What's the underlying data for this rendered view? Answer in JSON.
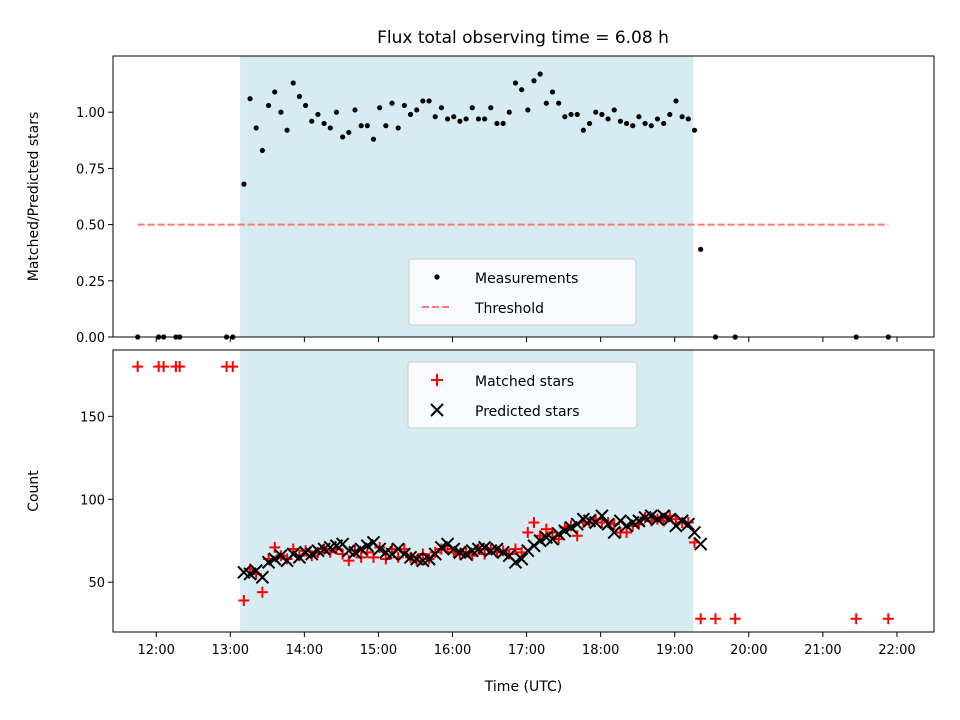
{
  "title": "Flux total observing time = 6.08 h",
  "chart_data": [
    {
      "type": "scatter",
      "ylabel": "Matched/Predicted stars",
      "xlabel": "",
      "xlim": [
        "11:25",
        "22:30"
      ],
      "ylim": [
        0.0,
        1.25
      ],
      "y_ticks": [
        "0.00",
        "0.25",
        "0.50",
        "0.75",
        "1.00"
      ],
      "shaded_span": {
        "from": "13:08",
        "to": "19:15",
        "color": "#add8e6"
      },
      "legend_placement": "lower center",
      "series": [
        {
          "name": "Measurements",
          "marker": "dot",
          "color": "#000000",
          "points": [
            [
              "11:45",
              0.0
            ],
            [
              "12:02",
              0.0
            ],
            [
              "12:06",
              0.0
            ],
            [
              "12:16",
              0.0
            ],
            [
              "12:19",
              0.0
            ],
            [
              "12:57",
              0.0
            ],
            [
              "13:02",
              0.0
            ],
            [
              "13:11",
              0.68
            ],
            [
              "13:16",
              1.06
            ],
            [
              "13:21",
              0.93
            ],
            [
              "13:26",
              0.83
            ],
            [
              "13:31",
              1.03
            ],
            [
              "13:36",
              1.09
            ],
            [
              "13:41",
              1.0
            ],
            [
              "13:46",
              0.92
            ],
            [
              "13:51",
              1.13
            ],
            [
              "13:56",
              1.07
            ],
            [
              "14:01",
              1.03
            ],
            [
              "14:06",
              0.96
            ],
            [
              "14:11",
              0.99
            ],
            [
              "14:16",
              0.95
            ],
            [
              "14:21",
              0.93
            ],
            [
              "14:26",
              1.0
            ],
            [
              "14:31",
              0.89
            ],
            [
              "14:36",
              0.91
            ],
            [
              "14:41",
              1.01
            ],
            [
              "14:46",
              0.94
            ],
            [
              "14:51",
              0.94
            ],
            [
              "14:56",
              0.88
            ],
            [
              "15:01",
              1.02
            ],
            [
              "15:06",
              0.94
            ],
            [
              "15:11",
              1.04
            ],
            [
              "15:16",
              0.93
            ],
            [
              "15:21",
              1.03
            ],
            [
              "15:26",
              0.99
            ],
            [
              "15:31",
              1.01
            ],
            [
              "15:36",
              1.05
            ],
            [
              "15:41",
              1.05
            ],
            [
              "15:46",
              0.98
            ],
            [
              "15:51",
              1.02
            ],
            [
              "15:56",
              0.97
            ],
            [
              "16:01",
              0.98
            ],
            [
              "16:06",
              0.96
            ],
            [
              "16:11",
              0.97
            ],
            [
              "16:16",
              1.02
            ],
            [
              "16:21",
              0.97
            ],
            [
              "16:26",
              0.97
            ],
            [
              "16:31",
              1.02
            ],
            [
              "16:36",
              0.95
            ],
            [
              "16:41",
              0.95
            ],
            [
              "16:46",
              1.0
            ],
            [
              "16:51",
              1.13
            ],
            [
              "16:56",
              1.1
            ],
            [
              "17:01",
              1.01
            ],
            [
              "17:06",
              1.14
            ],
            [
              "17:11",
              1.17
            ],
            [
              "17:16",
              1.04
            ],
            [
              "17:21",
              1.09
            ],
            [
              "17:26",
              1.04
            ],
            [
              "17:31",
              0.98
            ],
            [
              "17:36",
              0.99
            ],
            [
              "17:41",
              0.99
            ],
            [
              "17:46",
              0.92
            ],
            [
              "17:51",
              0.95
            ],
            [
              "17:56",
              1.0
            ],
            [
              "18:01",
              0.99
            ],
            [
              "18:06",
              0.97
            ],
            [
              "18:11",
              1.01
            ],
            [
              "18:16",
              0.96
            ],
            [
              "18:21",
              0.95
            ],
            [
              "18:26",
              0.94
            ],
            [
              "18:31",
              0.98
            ],
            [
              "18:36",
              0.95
            ],
            [
              "18:41",
              0.94
            ],
            [
              "18:46",
              0.97
            ],
            [
              "18:51",
              0.95
            ],
            [
              "18:56",
              0.99
            ],
            [
              "19:01",
              1.05
            ],
            [
              "19:06",
              0.98
            ],
            [
              "19:11",
              0.97
            ],
            [
              "19:16",
              0.92
            ],
            [
              "19:21",
              0.39
            ],
            [
              "19:33",
              0.0
            ],
            [
              "19:49",
              0.0
            ],
            [
              "21:27",
              0.0
            ],
            [
              "21:53",
              0.0
            ]
          ]
        },
        {
          "name": "Threshold",
          "marker": "dashed-line",
          "color": "#ff7777",
          "points": [
            [
              "11:45",
              0.5
            ],
            [
              "21:53",
              0.5
            ]
          ]
        }
      ]
    },
    {
      "type": "scatter",
      "ylabel": "Count",
      "xlabel": "Time (UTC)",
      "xlim": [
        "11:25",
        "22:30"
      ],
      "ylim": [
        20,
        190
      ],
      "y_ticks": [
        "50",
        "100",
        "150"
      ],
      "x_ticks": [
        "12:00",
        "13:00",
        "14:00",
        "15:00",
        "16:00",
        "17:00",
        "18:00",
        "19:00",
        "20:00",
        "21:00",
        "22:00"
      ],
      "shaded_span": {
        "from": "13:08",
        "to": "19:15",
        "color": "#add8e6"
      },
      "legend_placement": "upper center",
      "series": [
        {
          "name": "Matched stars",
          "marker": "plus",
          "color": "#ff0000",
          "points": [
            [
              "11:45",
              180
            ],
            [
              "12:02",
              180
            ],
            [
              "12:06",
              180
            ],
            [
              "12:16",
              180
            ],
            [
              "12:19",
              180
            ],
            [
              "12:57",
              180
            ],
            [
              "13:02",
              180
            ],
            [
              "13:11",
              39
            ],
            [
              "13:16",
              58
            ],
            [
              "13:21",
              55
            ],
            [
              "13:26",
              44
            ],
            [
              "13:31",
              64
            ],
            [
              "13:36",
              71
            ],
            [
              "13:41",
              66
            ],
            [
              "13:46",
              64
            ],
            [
              "13:51",
              70
            ],
            [
              "13:56",
              66
            ],
            [
              "14:01",
              69
            ],
            [
              "14:06",
              66
            ],
            [
              "14:11",
              68
            ],
            [
              "14:16",
              70
            ],
            [
              "14:21",
              68
            ],
            [
              "14:26",
              70
            ],
            [
              "14:31",
              67
            ],
            [
              "14:36",
              63
            ],
            [
              "14:41",
              69
            ],
            [
              "14:46",
              65
            ],
            [
              "14:51",
              68
            ],
            [
              "14:56",
              65
            ],
            [
              "15:01",
              71
            ],
            [
              "15:06",
              64
            ],
            [
              "15:11",
              70
            ],
            [
              "15:16",
              65
            ],
            [
              "15:21",
              70
            ],
            [
              "15:26",
              65
            ],
            [
              "15:31",
              63
            ],
            [
              "15:36",
              67
            ],
            [
              "15:41",
              64
            ],
            [
              "15:46",
              68
            ],
            [
              "15:51",
              70
            ],
            [
              "15:56",
              70
            ],
            [
              "16:01",
              68
            ],
            [
              "16:06",
              67
            ],
            [
              "16:11",
              68
            ],
            [
              "16:16",
              66
            ],
            [
              "16:21",
              70
            ],
            [
              "16:26",
              67
            ],
            [
              "16:31",
              70
            ],
            [
              "16:36",
              68
            ],
            [
              "16:41",
              69
            ],
            [
              "16:46",
              67
            ],
            [
              "16:51",
              70
            ],
            [
              "16:56",
              68
            ],
            [
              "17:01",
              80
            ],
            [
              "17:06",
              86
            ],
            [
              "17:11",
              78
            ],
            [
              "17:16",
              82
            ],
            [
              "17:21",
              80
            ],
            [
              "17:26",
              76
            ],
            [
              "17:31",
              83
            ],
            [
              "17:36",
              84
            ],
            [
              "17:41",
              78
            ],
            [
              "17:46",
              86
            ],
            [
              "17:51",
              86
            ],
            [
              "17:56",
              88
            ],
            [
              "18:01",
              86
            ],
            [
              "18:06",
              86
            ],
            [
              "18:11",
              85
            ],
            [
              "18:16",
              80
            ],
            [
              "18:21",
              80
            ],
            [
              "18:26",
              84
            ],
            [
              "18:31",
              85
            ],
            [
              "18:36",
              89
            ],
            [
              "18:41",
              87
            ],
            [
              "18:46",
              88
            ],
            [
              "18:51",
              87
            ],
            [
              "18:56",
              90
            ],
            [
              "19:01",
              88
            ],
            [
              "19:06",
              86
            ],
            [
              "19:11",
              86
            ],
            [
              "19:16",
              74
            ],
            [
              "19:21",
              28
            ],
            [
              "19:33",
              28
            ],
            [
              "19:49",
              28
            ],
            [
              "21:27",
              28
            ],
            [
              "21:53",
              28
            ]
          ]
        },
        {
          "name": "Predicted stars",
          "marker": "x",
          "color": "#000000",
          "points": [
            [
              "13:11",
              56
            ],
            [
              "13:16",
              55
            ],
            [
              "13:21",
              57
            ],
            [
              "13:26",
              53
            ],
            [
              "13:31",
              62
            ],
            [
              "13:36",
              64
            ],
            [
              "13:41",
              66
            ],
            [
              "13:46",
              63
            ],
            [
              "13:51",
              67
            ],
            [
              "13:56",
              65
            ],
            [
              "14:01",
              68
            ],
            [
              "14:06",
              67
            ],
            [
              "14:11",
              69
            ],
            [
              "14:16",
              70
            ],
            [
              "14:21",
              71
            ],
            [
              "14:26",
              72
            ],
            [
              "14:31",
              73
            ],
            [
              "14:36",
              69
            ],
            [
              "14:41",
              68
            ],
            [
              "14:46",
              70
            ],
            [
              "14:51",
              72
            ],
            [
              "14:56",
              74
            ],
            [
              "15:01",
              70
            ],
            [
              "15:06",
              68
            ],
            [
              "15:11",
              67
            ],
            [
              "15:16",
              70
            ],
            [
              "15:21",
              67
            ],
            [
              "15:26",
              65
            ],
            [
              "15:31",
              64
            ],
            [
              "15:36",
              63
            ],
            [
              "15:41",
              64
            ],
            [
              "15:46",
              67
            ],
            [
              "15:51",
              71
            ],
            [
              "15:56",
              73
            ],
            [
              "16:01",
              70
            ],
            [
              "16:06",
              68
            ],
            [
              "16:11",
              67
            ],
            [
              "16:16",
              69
            ],
            [
              "16:21",
              70
            ],
            [
              "16:26",
              71
            ],
            [
              "16:31",
              69
            ],
            [
              "16:36",
              70
            ],
            [
              "16:41",
              68
            ],
            [
              "16:46",
              66
            ],
            [
              "16:51",
              62
            ],
            [
              "16:56",
              64
            ],
            [
              "17:01",
              69
            ],
            [
              "17:06",
              72
            ],
            [
              "17:11",
              75
            ],
            [
              "17:16",
              77
            ],
            [
              "17:21",
              76
            ],
            [
              "17:26",
              79
            ],
            [
              "17:31",
              81
            ],
            [
              "17:36",
              83
            ],
            [
              "17:41",
              85
            ],
            [
              "17:46",
              88
            ],
            [
              "17:51",
              87
            ],
            [
              "17:56",
              86
            ],
            [
              "18:01",
              90
            ],
            [
              "18:06",
              85
            ],
            [
              "18:11",
              80
            ],
            [
              "18:16",
              87
            ],
            [
              "18:21",
              84
            ],
            [
              "18:26",
              86
            ],
            [
              "18:31",
              87
            ],
            [
              "18:36",
              89
            ],
            [
              "18:41",
              90
            ],
            [
              "18:46",
              88
            ],
            [
              "18:51",
              90
            ],
            [
              "18:56",
              88
            ],
            [
              "19:01",
              84
            ],
            [
              "19:06",
              87
            ],
            [
              "19:11",
              85
            ],
            [
              "19:16",
              80
            ],
            [
              "19:21",
              73
            ]
          ]
        }
      ]
    }
  ]
}
